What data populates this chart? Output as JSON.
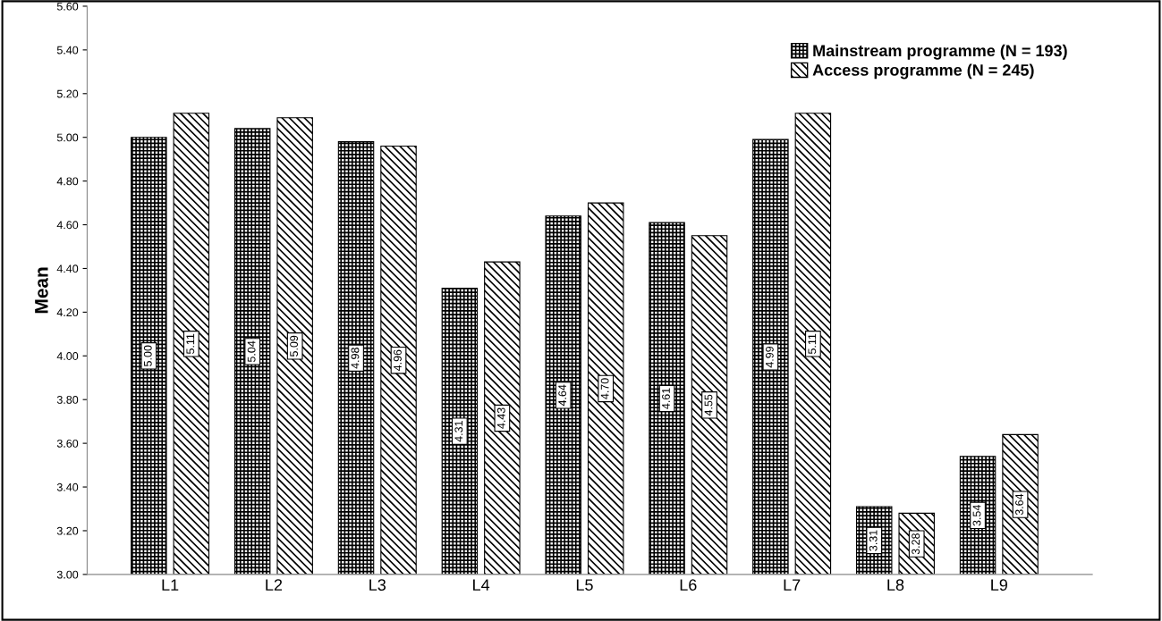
{
  "chart_data": {
    "type": "bar",
    "ylabel": "Mean",
    "categories": [
      "L1",
      "L2",
      "L3",
      "L4",
      "L5",
      "L6",
      "L7",
      "L8",
      "L9"
    ],
    "series": [
      {
        "name": "Mainstream programme (N = 193)",
        "color": "#000000",
        "values": [
          5.0,
          5.04,
          4.98,
          4.31,
          4.64,
          4.61,
          4.99,
          3.31,
          3.54
        ],
        "value_labels": [
          "5.00",
          "5.04",
          "4.98",
          "4.31",
          "4.64",
          "4.61",
          "4.99",
          "3.31",
          "3.54"
        ]
      },
      {
        "name": "Access programme (N = 245)",
        "color": "#000000",
        "values": [
          5.11,
          5.09,
          4.96,
          4.43,
          4.7,
          4.55,
          5.11,
          3.28,
          3.64
        ],
        "value_labels": [
          "5.11",
          "5.09",
          "4.96",
          "4.43",
          "4.70",
          "4.55",
          "5.11",
          "3.28",
          "3.64"
        ]
      }
    ],
    "ylim": [
      3.0,
      5.6
    ],
    "yticks": [
      {
        "value": 3.0,
        "label": "3.00"
      },
      {
        "value": 3.2,
        "label": "3.20"
      },
      {
        "value": 3.4,
        "label": "3.40"
      },
      {
        "value": 3.6,
        "label": "3.60"
      },
      {
        "value": 3.8,
        "label": "3.80"
      },
      {
        "value": 4.0,
        "label": "4.00"
      },
      {
        "value": 4.2,
        "label": "4.20"
      },
      {
        "value": 4.4,
        "label": "4.40"
      },
      {
        "value": 4.6,
        "label": "4.60"
      },
      {
        "value": 4.8,
        "label": "4.80"
      },
      {
        "value": 5.0,
        "label": "5.00"
      },
      {
        "value": 5.2,
        "label": "5.20"
      },
      {
        "value": 5.4,
        "label": "5.40"
      },
      {
        "value": 5.6,
        "label": "5.60"
      }
    ],
    "legend": "top right",
    "grid": false
  }
}
